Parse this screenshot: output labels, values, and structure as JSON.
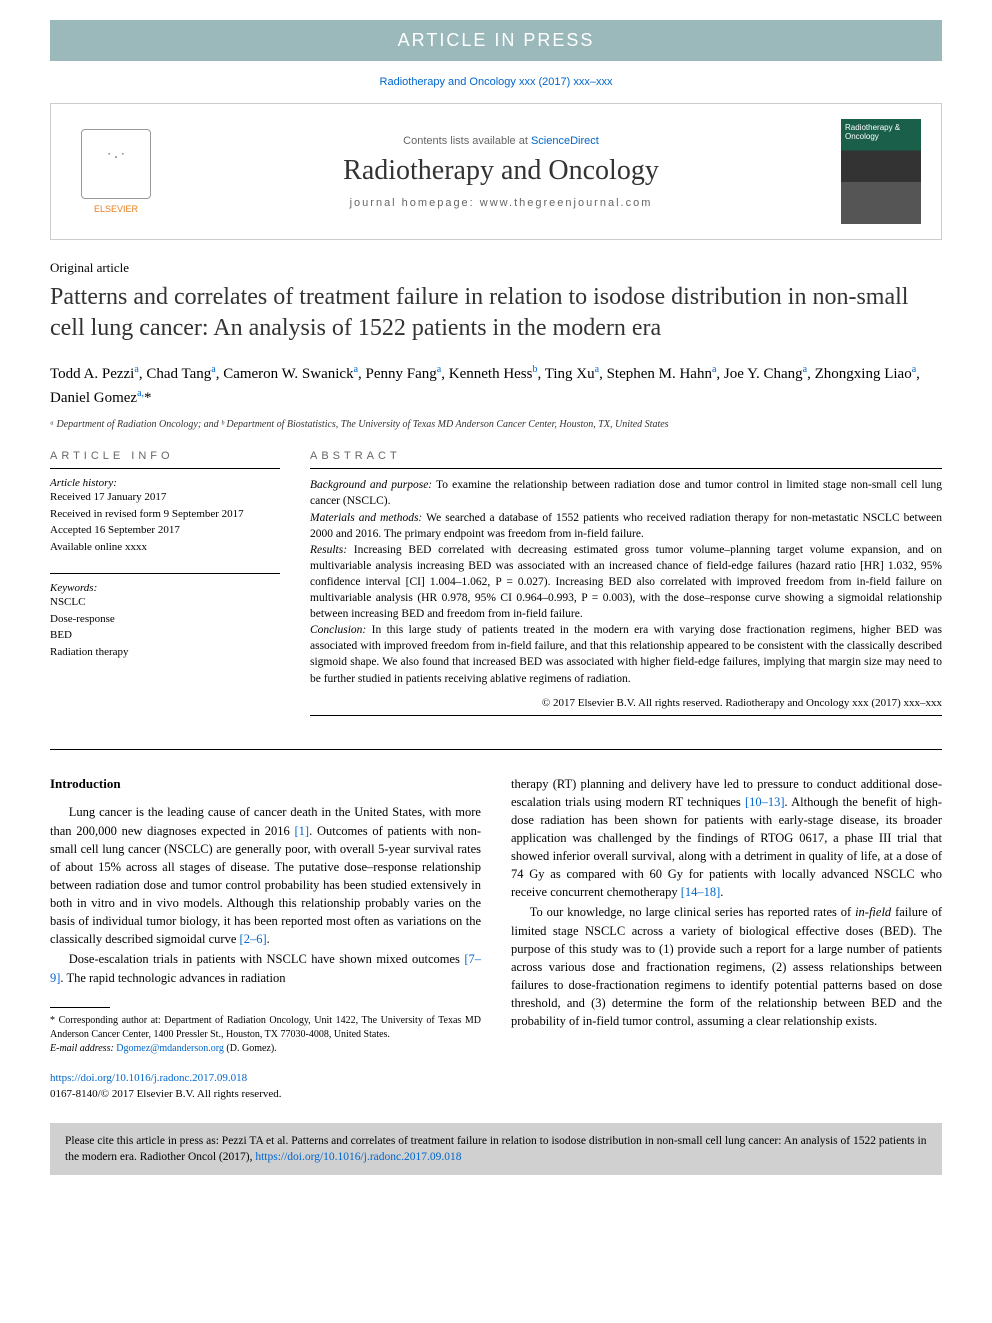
{
  "banner": "ARTICLE IN PRESS",
  "cite_line": "Radiotherapy and Oncology xxx (2017) xxx–xxx",
  "header": {
    "contents_prefix": "Contents lists available at ",
    "contents_link": "ScienceDirect",
    "journal": "Radiotherapy and Oncology",
    "homepage_prefix": "journal homepage: ",
    "homepage_url": "www.thegreenjournal.com",
    "publisher": "ELSEVIER",
    "cover_text": "Radiotherapy & Oncology"
  },
  "article_type": "Original article",
  "title": "Patterns and correlates of treatment failure in relation to isodose distribution in non-small cell lung cancer: An analysis of 1522 patients in the modern era",
  "authors_html": "Todd A. Pezzi<sup>a</sup>, Chad Tang<sup>a</sup>, Cameron W. Swanick<sup>a</sup>, Penny Fang<sup>a</sup>, Kenneth Hess<sup>b</sup>, Ting Xu<sup>a</sup>, Stephen M. Hahn<sup>a</sup>, Joe Y. Chang<sup>a</sup>, Zhongxing Liao<sup>a</sup>, Daniel Gomez<sup>a,</sup>*",
  "affiliations": "ᵃ Department of Radiation Oncology; and ᵇ Department of Biostatistics, The University of Texas MD Anderson Cancer Center, Houston, TX, United States",
  "info": {
    "heading": "ARTICLE INFO",
    "history_label": "Article history:",
    "history": [
      "Received 17 January 2017",
      "Received in revised form 9 September 2017",
      "Accepted 16 September 2017",
      "Available online xxxx"
    ],
    "keywords_label": "Keywords:",
    "keywords": [
      "NSCLC",
      "Dose-response",
      "BED",
      "Radiation therapy"
    ]
  },
  "abstract": {
    "heading": "ABSTRACT",
    "sections": [
      {
        "label": "Background and purpose:",
        "text": " To examine the relationship between radiation dose and tumor control in limited stage non-small cell lung cancer (NSCLC)."
      },
      {
        "label": "Materials and methods:",
        "text": " We searched a database of 1552 patients who received radiation therapy for non-metastatic NSCLC between 2000 and 2016. The primary endpoint was freedom from in-field failure."
      },
      {
        "label": "Results:",
        "text": " Increasing BED correlated with decreasing estimated gross tumor volume–planning target volume expansion, and on multivariable analysis increasing BED was associated with an increased chance of field-edge failures (hazard ratio [HR] 1.032, 95% confidence interval [CI] 1.004–1.062, P = 0.027). Increasing BED also correlated with improved freedom from in-field failure on multivariable analysis (HR 0.978, 95% CI 0.964–0.993, P = 0.003), with the dose–response curve showing a sigmoidal relationship between increasing BED and freedom from in-field failure."
      },
      {
        "label": "Conclusion:",
        "text": " In this large study of patients treated in the modern era with varying dose fractionation regimens, higher BED was associated with improved freedom from in-field failure, and that this relationship appeared to be consistent with the classically described sigmoid shape. We also found that increased BED was associated with higher field-edge failures, implying that margin size may need to be further studied in patients receiving ablative regimens of radiation."
      }
    ],
    "copyright": "© 2017 Elsevier B.V. All rights reserved. Radiotherapy and Oncology xxx (2017) xxx–xxx"
  },
  "intro": {
    "heading": "Introduction",
    "p1_a": "Lung cancer is the leading cause of cancer death in the United States, with more than 200,000 new diagnoses expected in 2016 ",
    "p1_ref1": "[1]",
    "p1_b": ". Outcomes of patients with non-small cell lung cancer (NSCLC) are generally poor, with overall 5-year survival rates of about 15% across all stages of disease. The putative dose–response relationship between radiation dose and tumor control probability has been studied extensively in both in vitro and in vivo models. Although this relationship probably varies on the basis of individual tumor biology, it has been reported most often as variations on the classically described sigmoidal curve ",
    "p1_ref2": "[2–6]",
    "p1_c": ".",
    "p2_a": "Dose-escalation trials in patients with NSCLC have shown mixed outcomes ",
    "p2_ref1": "[7–9]",
    "p2_b": ". The rapid technologic advances in radiation",
    "p3_a": "therapy (RT) planning and delivery have led to pressure to conduct additional dose-escalation trials using modern RT techniques ",
    "p3_ref1": "[10–13]",
    "p3_b": ". Although the benefit of high-dose radiation has been shown for patients with early-stage disease, its broader application was challenged by the findings of RTOG 0617, a phase III trial that showed inferior overall survival, along with a detriment in quality of life, at a dose of 74 Gy as compared with 60 Gy for patients with locally advanced NSCLC who receive concurrent chemotherapy ",
    "p3_ref2": "[14–18]",
    "p3_c": ".",
    "p4_a": "To our knowledge, no large clinical series has reported rates of ",
    "p4_i": "in-field",
    "p4_b": " failure of limited stage NSCLC across a variety of biological effective doses (BED). The purpose of this study was to (1) provide such a report for a large number of patients across various dose and fractionation regimens, (2) assess relationships between failures to dose-fractionation regimens to identify potential patterns based on dose threshold, and (3) determine the form of the relationship between BED and the probability of in-field tumor control, assuming a clear relationship exists."
  },
  "footnote": {
    "corr": "* Corresponding author at: Department of Radiation Oncology, Unit 1422, The University of Texas MD Anderson Cancer Center, 1400 Pressler St., Houston, TX 77030-4008, United States.",
    "email_label": "E-mail address: ",
    "email": "Dgomez@mdanderson.org",
    "email_suffix": " (D. Gomez)."
  },
  "doi": {
    "url": "https://doi.org/10.1016/j.radonc.2017.09.018",
    "issn": "0167-8140/© 2017 Elsevier B.V. All rights reserved."
  },
  "citebox": {
    "text_a": "Please cite this article in press as: Pezzi TA et al. Patterns and correlates of treatment failure in relation to isodose distribution in non-small cell lung cancer: An analysis of 1522 patients in the modern era. Radiother Oncol (2017), ",
    "link": "https://doi.org/10.1016/j.radonc.2017.09.018"
  }
}
